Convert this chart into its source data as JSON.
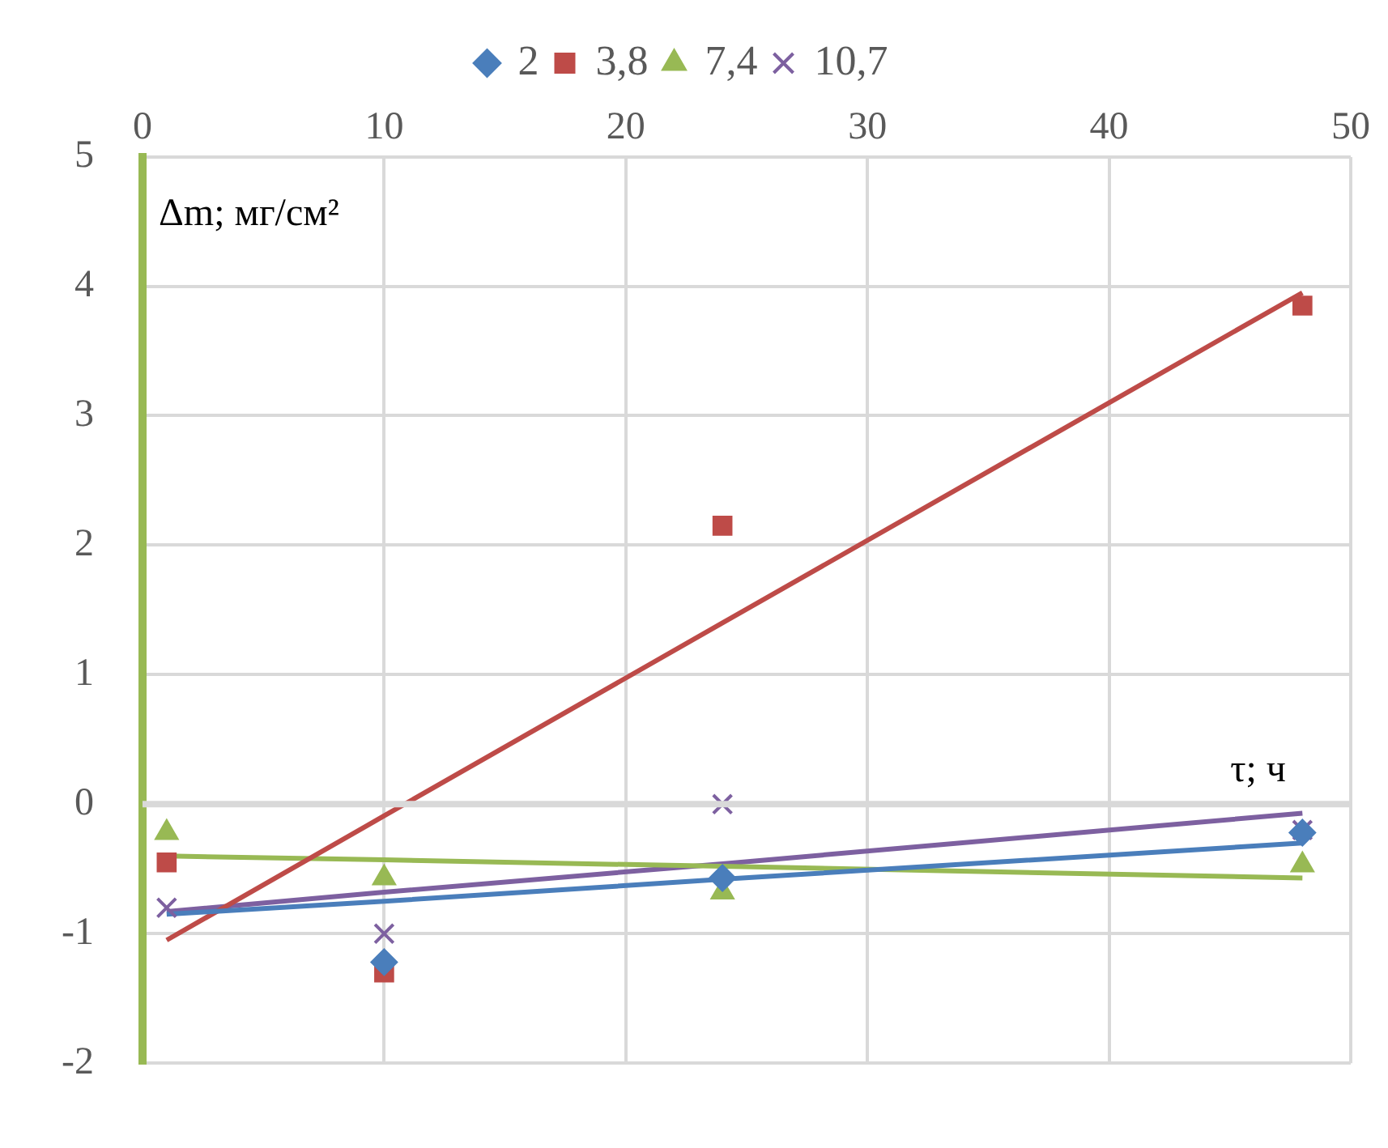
{
  "chart_data": {
    "type": "scatter",
    "xlabel": "τ; ч",
    "ylabel": "Δm; мг/см²",
    "xlim": [
      0,
      50
    ],
    "xticks": [
      0,
      10,
      20,
      30,
      40,
      50
    ],
    "ylim": [
      -2,
      5
    ],
    "yticks": [
      -2,
      -1,
      0,
      1,
      2,
      3,
      4,
      5
    ],
    "grid": true,
    "legend": "top",
    "x": [
      1,
      10,
      24,
      48
    ],
    "series": [
      {
        "name": "2",
        "color": "#4a7ebb",
        "marker": "diamond",
        "values": [
          null,
          -1.22,
          -0.57,
          -0.22
        ]
      },
      {
        "name": "3,8",
        "color": "#be4b48",
        "marker": "square",
        "values": [
          -0.45,
          -1.3,
          2.15,
          3.85
        ]
      },
      {
        "name": "7,4",
        "color": "#98b954",
        "marker": "triangle",
        "values": [
          -0.22,
          -0.57,
          -0.68,
          -0.47
        ]
      },
      {
        "name": "10,7",
        "color": "#7d60a0",
        "marker": "cross",
        "values": [
          -0.8,
          -1.0,
          0.0,
          -0.2
        ]
      },
      {
        "type": "line",
        "color": "#4a7ebb",
        "values": [
          -0.85,
          -0.75,
          -0.58,
          -0.3
        ]
      },
      {
        "type": "line",
        "color": "#be4b48",
        "values": [
          -1.05,
          -0.09,
          1.4,
          3.95
        ]
      },
      {
        "type": "line",
        "color": "#98b954",
        "values": [
          -0.4,
          -0.43,
          -0.48,
          -0.57
        ]
      },
      {
        "type": "line",
        "color": "#7d60a0",
        "values": [
          -0.83,
          -0.68,
          -0.46,
          -0.07
        ]
      }
    ]
  }
}
